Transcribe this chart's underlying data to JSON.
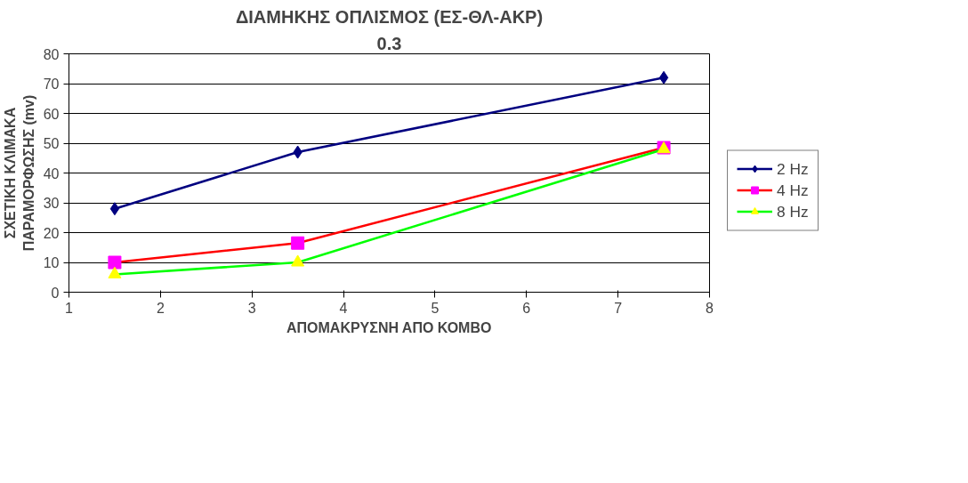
{
  "chart_data": {
    "type": "line",
    "title": "ΔΙΑΜΗΚΗΣ ΟΠΛΙΣΜΟΣ (ΕΣ-ΘΛ-ΑΚΡ)",
    "subtitle": "0.3",
    "xlabel": "ΑΠΟΜΑΚΡΥΣΝΗ ΑΠΟ ΚΟΜΒΟ",
    "ylabel": "ΣΧΕΤΙΚΗ ΚΛΙΜΑΚΑ\nΠΑΡΑΜΟΡΦΩΣΗΣ (mv)",
    "x": [
      1.5,
      3.5,
      7.5
    ],
    "series": [
      {
        "name": "2 Hz",
        "color": "#000080",
        "colors": [
          "#000080",
          "#000080",
          "#000080"
        ],
        "marker": "diamond",
        "values": [
          28,
          47,
          72
        ]
      },
      {
        "name": "4 Hz",
        "color": "#ff0000",
        "colors": [
          "#ff00ff",
          "#ff00ff",
          "#ff00ff"
        ],
        "marker": "square",
        "values": [
          10,
          16.5,
          48.5
        ]
      },
      {
        "name": "8 Hz",
        "color": "#00ff00",
        "colors": [
          "#ffff00",
          "#ffff00",
          "#ffff00"
        ],
        "marker": "triangle",
        "values": [
          6,
          10,
          48
        ]
      }
    ],
    "xlim": [
      1,
      8
    ],
    "xticks": [
      1,
      2,
      3,
      4,
      5,
      6,
      7,
      8
    ],
    "ylim": [
      0,
      80
    ],
    "yticks": [
      0,
      10,
      20,
      30,
      40,
      50,
      60,
      70,
      80
    ],
    "grid": "y",
    "legend": "right",
    "line_style": "solid"
  }
}
